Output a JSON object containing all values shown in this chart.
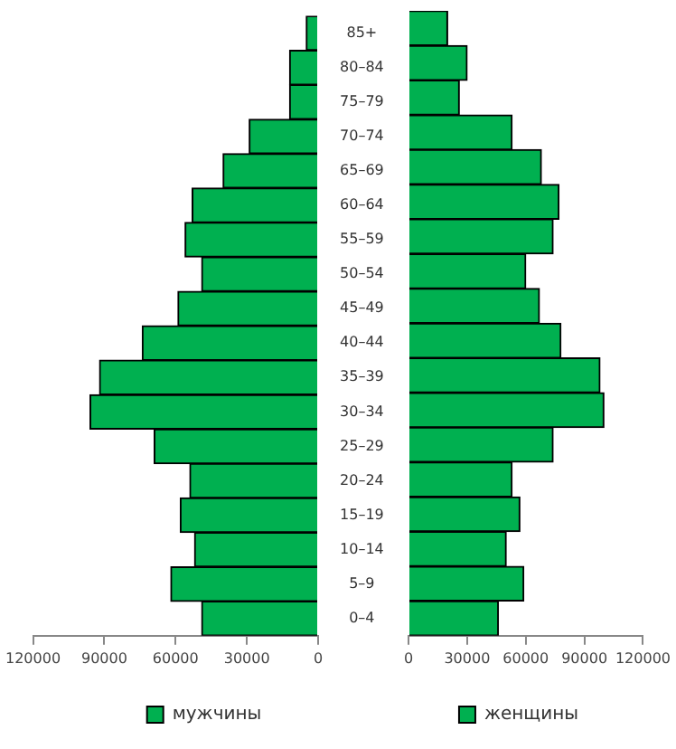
{
  "chart_data": [
    {
      "type": "bar",
      "orientation": "horizontal",
      "categories": [
        "85+",
        "80–84",
        "75–79",
        "70–74",
        "65–69",
        "60–64",
        "55–59",
        "50–54",
        "45–49",
        "40–44",
        "35–39",
        "30–34",
        "25–29",
        "20–24",
        "15–19",
        "10–14",
        "5–9",
        "0–4"
      ],
      "series": [
        {
          "name": "мужчины",
          "color": "#00b050",
          "values": [
            5000,
            12000,
            12000,
            29000,
            40000,
            53000,
            56000,
            49000,
            59000,
            74000,
            92000,
            96000,
            69000,
            54000,
            58000,
            52000,
            62000,
            49000
          ]
        }
      ],
      "xlim": [
        120000,
        0
      ],
      "xticks": [
        120000,
        90000,
        60000,
        30000,
        0
      ],
      "grid": false,
      "legend": "bottom"
    },
    {
      "type": "bar",
      "orientation": "horizontal",
      "categories": [
        null,
        null,
        null,
        null,
        null,
        null,
        null,
        null,
        null,
        null,
        null,
        null,
        null,
        null,
        null,
        null,
        null,
        null
      ],
      "series": [
        {
          "name": "женщины",
          "color": "#00b050",
          "values": [
            20000,
            30000,
            26000,
            53000,
            68000,
            77000,
            74000,
            60000,
            67000,
            78000,
            98000,
            100000,
            74000,
            53000,
            57000,
            50000,
            59000,
            46000
          ]
        }
      ],
      "xlim": [
        0,
        120000
      ],
      "xticks": [
        0,
        30000,
        60000,
        90000,
        120000
      ],
      "tick_labels": "x",
      "grid": false,
      "legend": "bottom"
    }
  ]
}
